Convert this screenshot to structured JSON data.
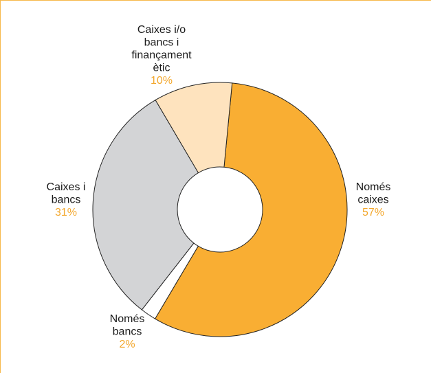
{
  "chart_data": {
    "type": "pie",
    "variant": "donut",
    "slices": [
      {
        "label_lines": [
          "Només",
          "caixes"
        ],
        "percent_label": "57%",
        "value": 57,
        "color": "#f9ae33"
      },
      {
        "label_lines": [
          "Només",
          "bancs"
        ],
        "percent_label": "2%",
        "value": 2,
        "color": "#ffffff"
      },
      {
        "label_lines": [
          "Caixes i",
          "bancs"
        ],
        "percent_label": "31%",
        "value": 31,
        "color": "#d3d4d6"
      },
      {
        "label_lines": [
          "Caixes i/o",
          "bancs i",
          "finançament",
          "ètic"
        ],
        "percent_label": "10%",
        "value": 10,
        "color": "#fee3be"
      }
    ],
    "label_color": "#1a1a1a",
    "percent_color": "#f3a72c",
    "stroke_color": "#222222",
    "frame_color": "#f6b84a"
  }
}
